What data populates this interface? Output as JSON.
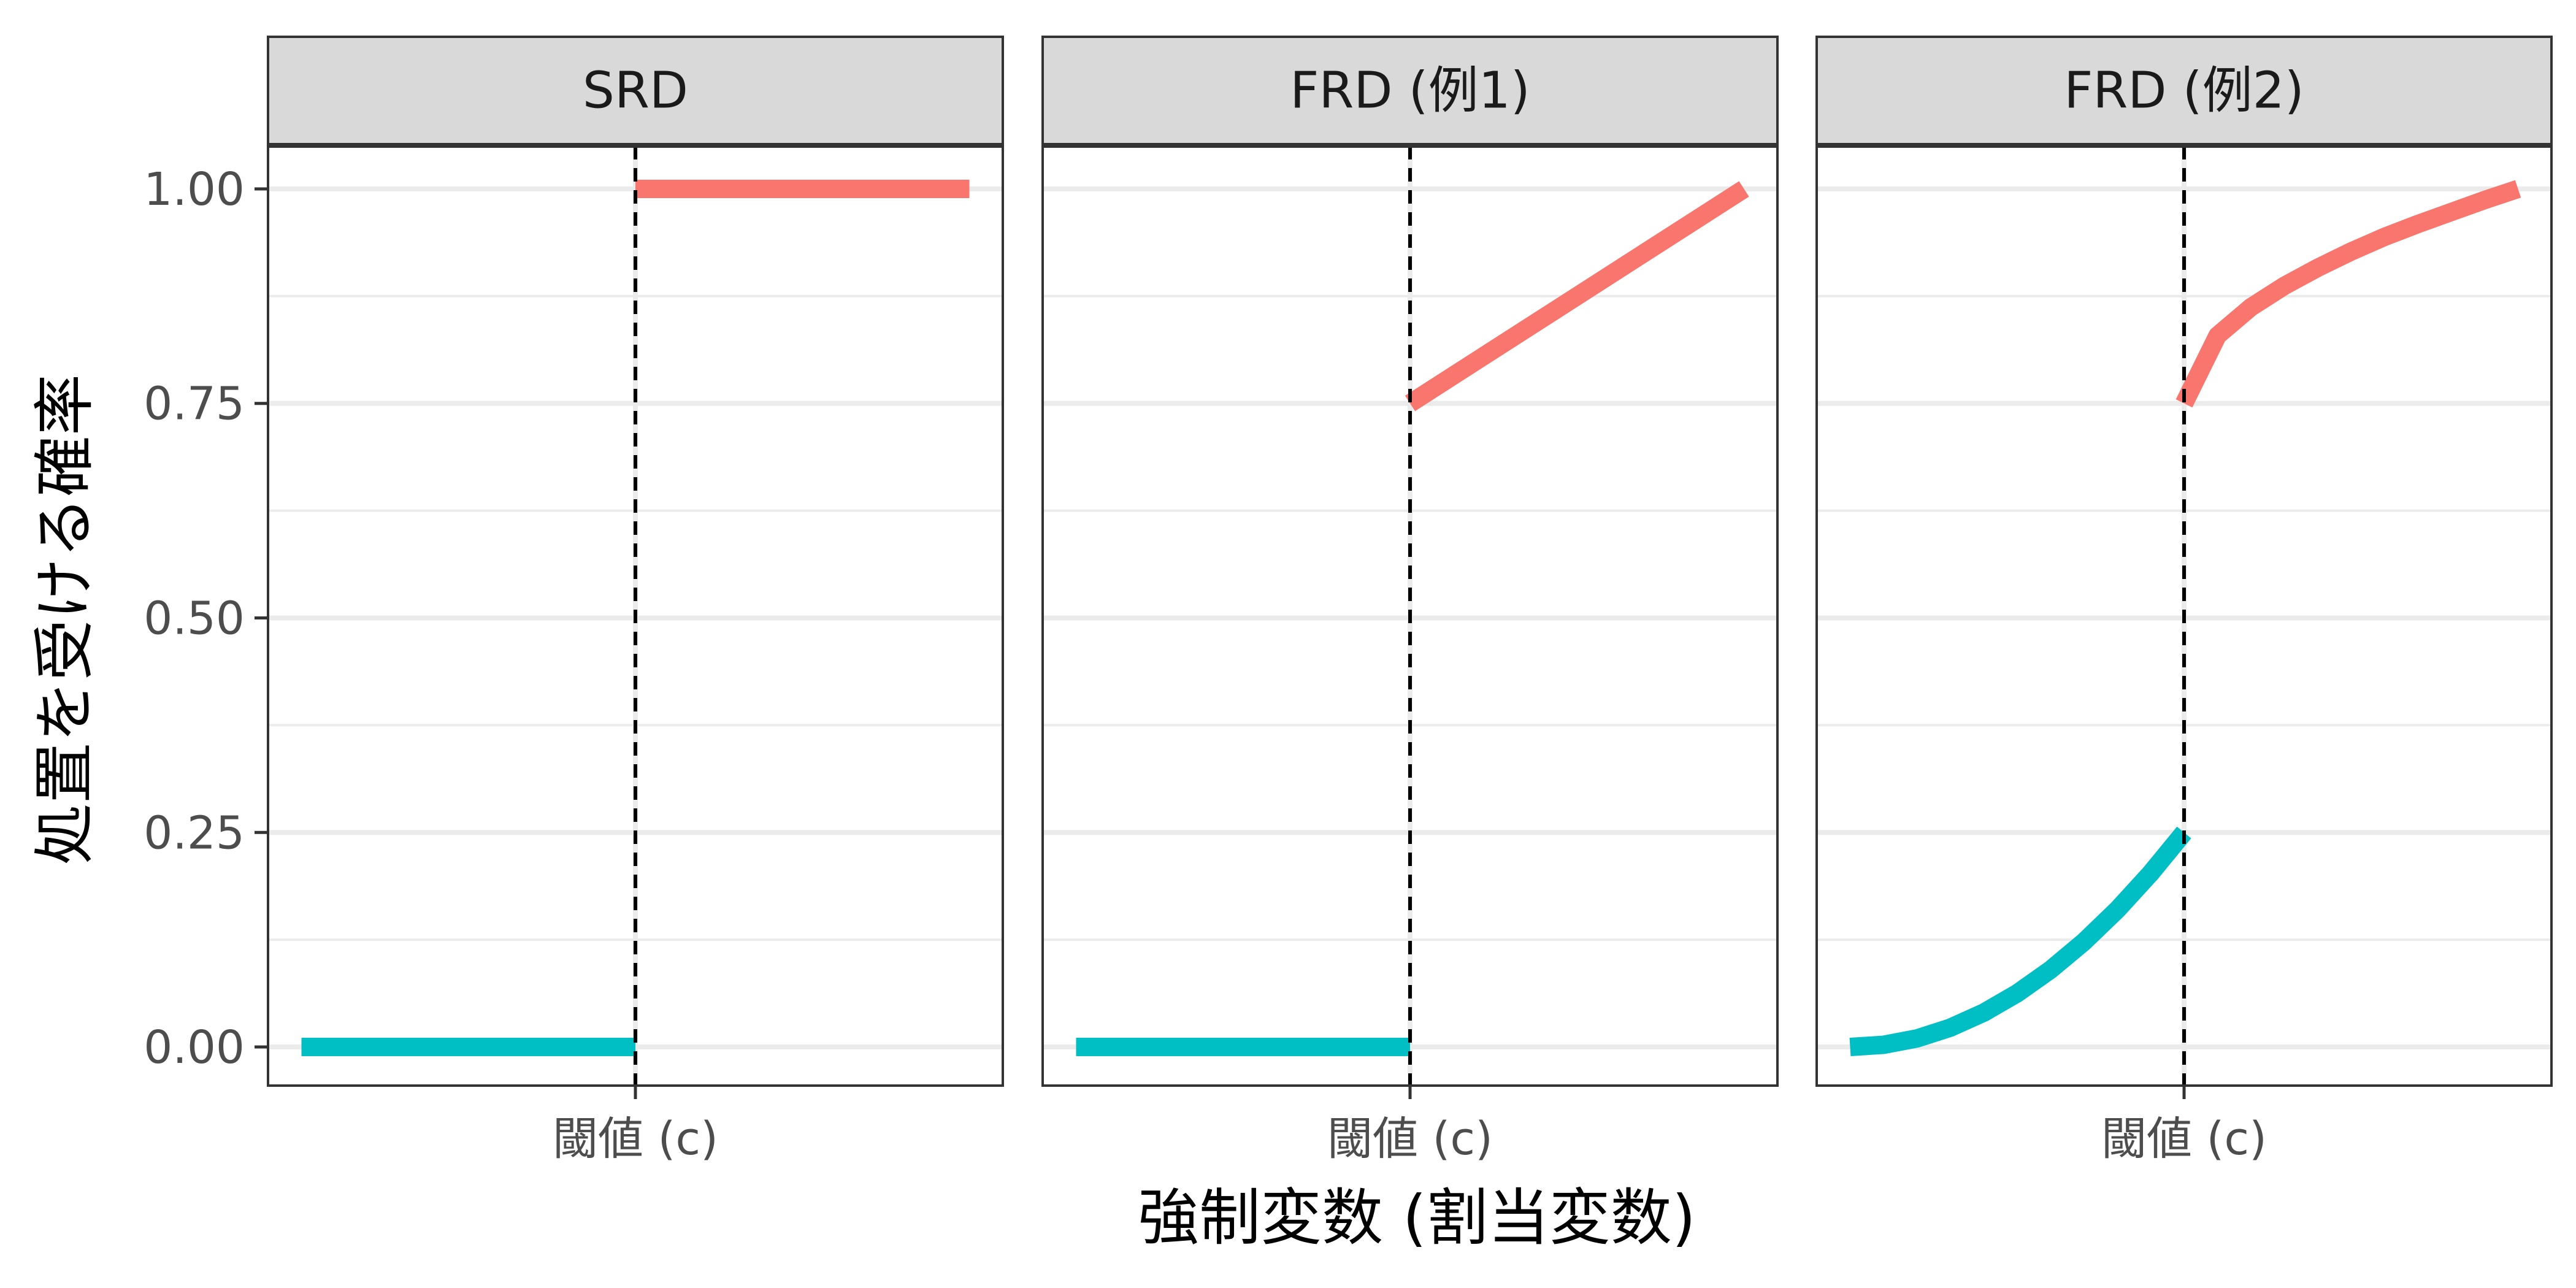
{
  "chart_data": {
    "type": "line",
    "xlabel": "強制変数 (割当変数)",
    "ylabel": "処置を受ける確率",
    "ylim": [
      -0.045,
      1.05
    ],
    "xlim": [
      -0.05,
      1.05
    ],
    "y_ticks": [
      0.0,
      0.25,
      0.5,
      0.75,
      1.0
    ],
    "y_tick_labels": [
      "0.00",
      "0.25",
      "0.50",
      "0.75",
      "1.00"
    ],
    "y_minor_ticks": [
      0.125,
      0.375,
      0.625,
      0.875
    ],
    "x_tick_value": 0.5,
    "x_tick_label": "閾値 (c)",
    "threshold": 0.5,
    "grid": true,
    "colors": {
      "below": "#00BFC4",
      "above": "#F8766D",
      "threshold_line": "#000000",
      "strip_bg": "#D9D9D9",
      "grid": "#EBEBEB"
    },
    "panels": [
      {
        "title": "SRD",
        "series": [
          {
            "segment": "below",
            "x": [
              0.0,
              0.5
            ],
            "y": [
              0.0,
              0.0
            ]
          },
          {
            "segment": "above",
            "x": [
              0.5,
              1.0
            ],
            "y": [
              1.0,
              1.0
            ]
          }
        ]
      },
      {
        "title": "FRD (例1)",
        "series": [
          {
            "segment": "below",
            "x": [
              0.0,
              0.5
            ],
            "y": [
              0.0,
              0.0
            ]
          },
          {
            "segment": "above",
            "x": [
              0.5,
              1.0
            ],
            "y": [
              0.75,
              1.0
            ]
          }
        ]
      },
      {
        "title": "FRD (例2)",
        "series": [
          {
            "segment": "below",
            "x": [
              0.0,
              0.05,
              0.1,
              0.15,
              0.2,
              0.25,
              0.3,
              0.35,
              0.4,
              0.45,
              0.5
            ],
            "y": [
              0.0,
              0.0025,
              0.01,
              0.0225,
              0.04,
              0.0625,
              0.09,
              0.1225,
              0.16,
              0.2025,
              0.25
            ]
          },
          {
            "segment": "above",
            "x": [
              0.5,
              0.55,
              0.6,
              0.65,
              0.7,
              0.75,
              0.8,
              0.85,
              0.9,
              0.95,
              1.0
            ],
            "y": [
              0.75,
              0.829,
              0.862,
              0.887,
              0.908,
              0.927,
              0.944,
              0.959,
              0.973,
              0.987,
              1.0
            ]
          }
        ]
      }
    ]
  }
}
